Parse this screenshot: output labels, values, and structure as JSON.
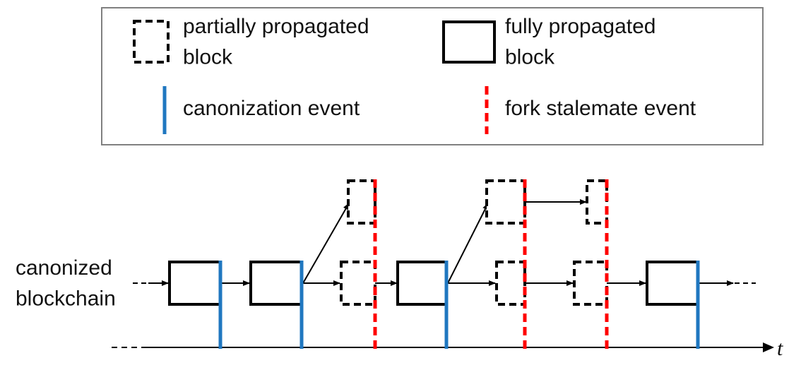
{
  "legend": {
    "partial_block": "partially propagated\nblock",
    "full_block": "fully propagated\nblock",
    "canonization": "canonization event",
    "fork_stalemate": "fork stalemate event"
  },
  "chain_label": "canonized\nblockchain",
  "time_axis_label": "t",
  "colors": {
    "canonization": "#1f77c0",
    "fork_stalemate": "#ff0000",
    "block_border": "#000000",
    "legend_border": "#808080"
  }
}
